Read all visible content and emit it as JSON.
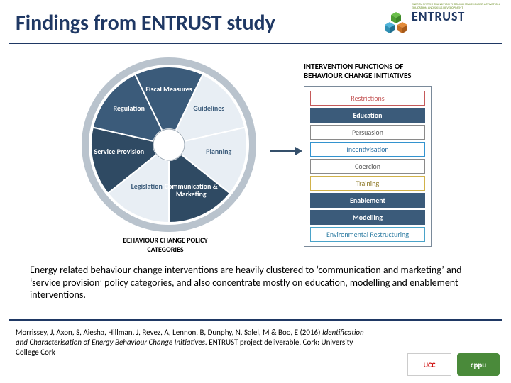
{
  "title": "Findings from ENTRUST study",
  "logo": {
    "brand": "ENTRUST",
    "tagline": "ENERGY SYSTEM TRANSITION THROUGH STAKEHOLDER ACTIVATION, EDUCATION AND SKILLS DEVELOPMENT"
  },
  "diagram": {
    "type": "infographic",
    "wheel": {
      "caption": "BEHAVIOUR CHANGE POLICY CATEGORIES",
      "segments": [
        {
          "label": "Fiscal Measures",
          "fill": "#3b5b7a",
          "text": "#ffffff",
          "angle": -60
        },
        {
          "label": "Guidelines",
          "fill": "#e8eef4",
          "text": "#3b5b7a",
          "angle": 0
        },
        {
          "label": "Planning",
          "fill": "#e8eef4",
          "text": "#3b5b7a",
          "angle": 60
        },
        {
          "label": "Communication & Marketing",
          "fill": "#2f4a63",
          "text": "#ffffff",
          "angle": 120
        },
        {
          "label": "Legislation",
          "fill": "#e8eef4",
          "text": "#3b5b7a",
          "angle": 180
        },
        {
          "label": "Service Provision",
          "fill": "#2f4a63",
          "text": "#ffffff",
          "angle": 240
        },
        {
          "label": "Regulation",
          "fill": "#3b5b7a",
          "text": "#ffffff",
          "angle": 300
        }
      ],
      "outer_radius": 110,
      "inner_radius": 22,
      "ring_stroke": "#9aa7b3",
      "ring_stroke_width": 2,
      "arrow_ring_color": "#b9c3cd"
    },
    "functions": {
      "title": "INTERVENTION FUNCTIONS OF BEHAVIOUR CHANGE INITIATIVES",
      "items": [
        {
          "label": "Restrictions",
          "fill": "#ffffff",
          "border": "#c55a5a",
          "text": "#c55a5a",
          "highlight": false
        },
        {
          "label": "Education",
          "fill": "#3b5b7a",
          "border": "#3b5b7a",
          "text": "#ffffff",
          "highlight": true
        },
        {
          "label": "Persuasion",
          "fill": "#ffffff",
          "border": "#8a8a8a",
          "text": "#5a5a5a",
          "highlight": false
        },
        {
          "label": "Incentivisation",
          "fill": "#ffffff",
          "border": "#3393cf",
          "text": "#2a6fa3",
          "highlight": false
        },
        {
          "label": "Coercion",
          "fill": "#ffffff",
          "border": "#8a8a8a",
          "text": "#5a5a5a",
          "highlight": false
        },
        {
          "label": "Training",
          "fill": "#ffffff",
          "border": "#d1b24a",
          "text": "#8a7420",
          "highlight": false
        },
        {
          "label": "Enablement",
          "fill": "#3b5b7a",
          "border": "#3b5b7a",
          "text": "#ffffff",
          "highlight": true
        },
        {
          "label": "Modelling",
          "fill": "#3b5b7a",
          "border": "#3b5b7a",
          "text": "#ffffff",
          "highlight": true
        },
        {
          "label": "Environmental Restructuring",
          "fill": "#ffffff",
          "border": "#4aa3c9",
          "text": "#2f7da3",
          "highlight": false
        }
      ],
      "box_border": "#7a8a9a"
    },
    "arrow_color": "#35506b"
  },
  "caption": "Energy related behaviour change interventions are heavily clustered to ‘communication and marketing’ and ‘service provision’ policy categories, and also concentrate mostly on education, modelling and enablement interventions.",
  "citation": {
    "authors": "Morrissey, J, Axon, S,  Aiesha, Hillman, J,  Revez, A,  Lennon, B,  Dunphy, N, Salel, M & Boo, E (2016) ",
    "title_italic": "Identification and Characterisation of Energy Behaviour Change Initiatives.",
    "rest": " ENTRUST project deliverable. Cork: University College Cork"
  },
  "footer": {
    "ucc": "UCC",
    "cppu": "cppu"
  },
  "colors": {
    "heading": "#1f3864",
    "hr": "#1f3864"
  }
}
